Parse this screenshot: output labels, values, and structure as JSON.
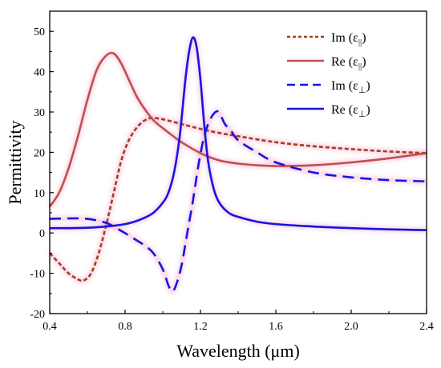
{
  "chart_data": {
    "type": "line",
    "xlabel": "Wavelength (μm)",
    "ylabel": "Permittivity",
    "xlim": [
      0.4,
      2.4
    ],
    "ylim": [
      -20,
      55
    ],
    "x_ticks": [
      0.4,
      0.8,
      1.2,
      1.6,
      2.0,
      2.4
    ],
    "x_tick_labels": [
      "0.4",
      "0.8",
      "1.2",
      "1.6",
      "2.0",
      "2.4"
    ],
    "y_ticks": [
      -20,
      -10,
      0,
      10,
      20,
      30,
      40,
      50
    ],
    "y_tick_labels": [
      "-20",
      "-10",
      "0",
      "10",
      "20",
      "30",
      "40",
      "50"
    ],
    "grid": false,
    "legend_position": "top-right",
    "series": [
      {
        "name": "Im (ε||)",
        "legend_main": "Im (ε",
        "legend_sub": "||",
        "legend_close": ")",
        "color": "#A0401E",
        "style": "dotted",
        "x": [
          0.4,
          0.45,
          0.5,
          0.55,
          0.58,
          0.62,
          0.66,
          0.7,
          0.74,
          0.78,
          0.82,
          0.86,
          0.9,
          0.94,
          1.0,
          1.1,
          1.2,
          1.3,
          1.4,
          1.6,
          1.8,
          2.0,
          2.2,
          2.4
        ],
        "y": [
          -5,
          -7.5,
          -10,
          -11.5,
          -11.8,
          -10,
          -5,
          2,
          10,
          18,
          23,
          26,
          27.8,
          28.5,
          28.2,
          27,
          25.8,
          24.8,
          24,
          22.5,
          21.5,
          20.8,
          20.2,
          19.8
        ]
      },
      {
        "name": "Re (ε||)",
        "legend_main": "Re (ε",
        "legend_sub": "||",
        "legend_close": ")",
        "color": "#C0504D",
        "style": "solid",
        "x": [
          0.4,
          0.45,
          0.5,
          0.55,
          0.6,
          0.65,
          0.7,
          0.74,
          0.78,
          0.82,
          0.86,
          0.9,
          0.95,
          1.0,
          1.05,
          1.1,
          1.2,
          1.3,
          1.4,
          1.5,
          1.6,
          1.8,
          2.0,
          2.2,
          2.4
        ],
        "y": [
          6.5,
          10,
          16,
          24,
          33,
          40.5,
          44,
          44.5,
          42,
          38,
          34,
          31,
          28,
          26,
          24.2,
          22.5,
          19.8,
          18,
          17.2,
          16.8,
          16.6,
          16.8,
          17.5,
          18.5,
          19.8
        ]
      },
      {
        "name": "Im (ε⊥)",
        "legend_main": "Im (ε",
        "legend_sub": "⊥",
        "legend_close": ")",
        "color": "#1515E0",
        "style": "dashed",
        "x": [
          0.4,
          0.5,
          0.6,
          0.7,
          0.78,
          0.85,
          0.9,
          0.95,
          1.0,
          1.03,
          1.05,
          1.07,
          1.1,
          1.13,
          1.16,
          1.19,
          1.22,
          1.25,
          1.28,
          1.3,
          1.33,
          1.36,
          1.4,
          1.5,
          1.6,
          1.8,
          2.0,
          2.2,
          2.4
        ],
        "y": [
          3.5,
          3.6,
          3.5,
          2.5,
          0.5,
          -1.5,
          -3,
          -5,
          -9,
          -13,
          -14.5,
          -13,
          -8,
          0,
          8,
          17,
          24,
          28,
          30,
          29.8,
          27,
          25.5,
          23,
          20,
          17.5,
          15,
          13.8,
          13.1,
          12.8
        ]
      },
      {
        "name": "Re (ε⊥)",
        "legend_main": "Re (ε",
        "legend_sub": "⊥",
        "legend_close": ")",
        "color": "#1515E0",
        "style": "solid",
        "x": [
          0.4,
          0.5,
          0.6,
          0.7,
          0.8,
          0.85,
          0.9,
          0.95,
          1.0,
          1.03,
          1.06,
          1.09,
          1.12,
          1.14,
          1.16,
          1.18,
          1.2,
          1.22,
          1.24,
          1.27,
          1.3,
          1.35,
          1.4,
          1.5,
          1.6,
          1.8,
          2.0,
          2.2,
          2.4
        ],
        "y": [
          1.2,
          1.2,
          1.3,
          1.6,
          2.2,
          2.8,
          3.7,
          5,
          7.5,
          10,
          15,
          24,
          38,
          45,
          48.5,
          46,
          38,
          27,
          18,
          11,
          7.5,
          5,
          4,
          2.8,
          2.2,
          1.6,
          1.2,
          0.9,
          0.7
        ]
      }
    ]
  }
}
